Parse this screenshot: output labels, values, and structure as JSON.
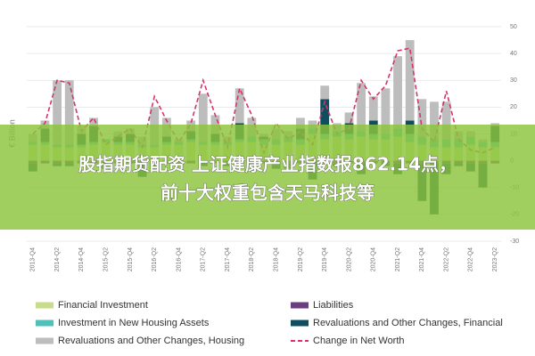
{
  "chart_data": {
    "type": "bar",
    "stacked": true,
    "ylabel": "€ Billion",
    "categories": [
      "2013-Q4",
      null,
      "2014-Q2",
      null,
      "2014-Q4",
      null,
      "2015-Q2",
      null,
      "2015-Q4",
      null,
      "2016-Q2",
      null,
      "2016-Q4",
      null,
      "2017-Q2",
      null,
      "2017-Q4",
      null,
      "2018-Q2",
      null,
      "2018-Q4",
      null,
      "2019-Q2",
      null,
      "2019-Q4",
      null,
      "2020-Q2",
      null,
      "2020-Q4",
      null,
      "2021-Q2",
      null,
      "2021-Q4",
      null,
      "2022-Q2",
      null,
      "2022-Q4",
      null,
      "2023-Q2"
    ],
    "series": [
      {
        "name": "Financial Investment",
        "type": "bar",
        "color": "#c9dc8c",
        "values": [
          6,
          6,
          5,
          5,
          5,
          6,
          7,
          6,
          6,
          5,
          5,
          6,
          6,
          7,
          6,
          6,
          6,
          7,
          7,
          6,
          6,
          7,
          6,
          10,
          8,
          9,
          8,
          9,
          8,
          8,
          9,
          7,
          6,
          5,
          5,
          5,
          6,
          5,
          5
        ]
      },
      {
        "name": "Liabilities",
        "type": "bar",
        "color": "#6b3e7d",
        "values": [
          -1,
          -1,
          -1,
          -1,
          -1,
          -1,
          -1,
          -1,
          -1,
          -1,
          -1,
          -1,
          -1,
          -1,
          -1,
          -1,
          -1,
          -1,
          -1,
          -1,
          -1,
          -1,
          -1,
          -1,
          -1,
          -1,
          -1,
          -1,
          -1,
          -1,
          -1,
          -1,
          -1,
          -1,
          -1,
          -1,
          -1,
          -1,
          -1
        ]
      },
      {
        "name": "Investment in New Housing Assets",
        "type": "bar",
        "color": "#4fc1b9",
        "values": [
          1,
          1,
          1,
          1,
          1,
          1,
          1,
          1,
          1,
          1,
          1,
          1,
          1,
          1,
          1,
          1,
          1,
          1,
          2,
          2,
          2,
          2,
          2,
          2,
          2,
          2,
          2,
          2,
          2,
          2,
          3,
          3,
          3,
          3,
          3,
          3,
          3,
          2,
          2
        ]
      },
      {
        "name": "Revaluations and Other Changes, Financial",
        "type": "bar",
        "color": "#0f4e5f",
        "values": [
          -3,
          5,
          -1,
          -1,
          4,
          6,
          -2,
          2,
          3,
          -5,
          -2,
          2,
          -1,
          3,
          -1,
          3,
          -1,
          6,
          -1,
          1,
          -2,
          -2,
          4,
          -6,
          13,
          -1,
          4,
          -4,
          5,
          -1,
          -4,
          5,
          -14,
          -19,
          -4,
          -1,
          -3,
          -9,
          6
        ]
      },
      {
        "name": "Revaluations and Other Changes, Housing",
        "type": "bar",
        "color": "#bdbdbd",
        "values": [
          3,
          3,
          24,
          24,
          3,
          3,
          0,
          2,
          2,
          3,
          14,
          7,
          1,
          4,
          18,
          7,
          2,
          13,
          7,
          1,
          4,
          2,
          4,
          3,
          5,
          3,
          4,
          18,
          9,
          17,
          27,
          30,
          14,
          14,
          14,
          3,
          2,
          1,
          1
        ]
      },
      {
        "name": "Change in Net Worth",
        "type": "line",
        "dashed": true,
        "color": "#d6336c",
        "values": [
          10,
          14,
          30,
          29,
          11,
          16,
          6,
          9,
          12,
          5,
          24,
          15,
          7,
          14,
          30,
          17,
          5,
          27,
          17,
          3,
          14,
          8,
          11,
          6,
          22,
          10,
          12,
          30,
          23,
          28,
          41,
          42,
          12,
          7,
          26,
          8,
          4,
          3,
          5
        ]
      }
    ],
    "ylim": [
      -30,
      50
    ],
    "yticks": [
      -30,
      -20,
      -10,
      0,
      10,
      20,
      30,
      40,
      50
    ],
    "grid": true,
    "legend": "bottom"
  },
  "overlay": {
    "lines": [
      "股指期货配资 上证健康产业指数报862.14点，",
      "前十大权重包含天马科技等"
    ]
  }
}
